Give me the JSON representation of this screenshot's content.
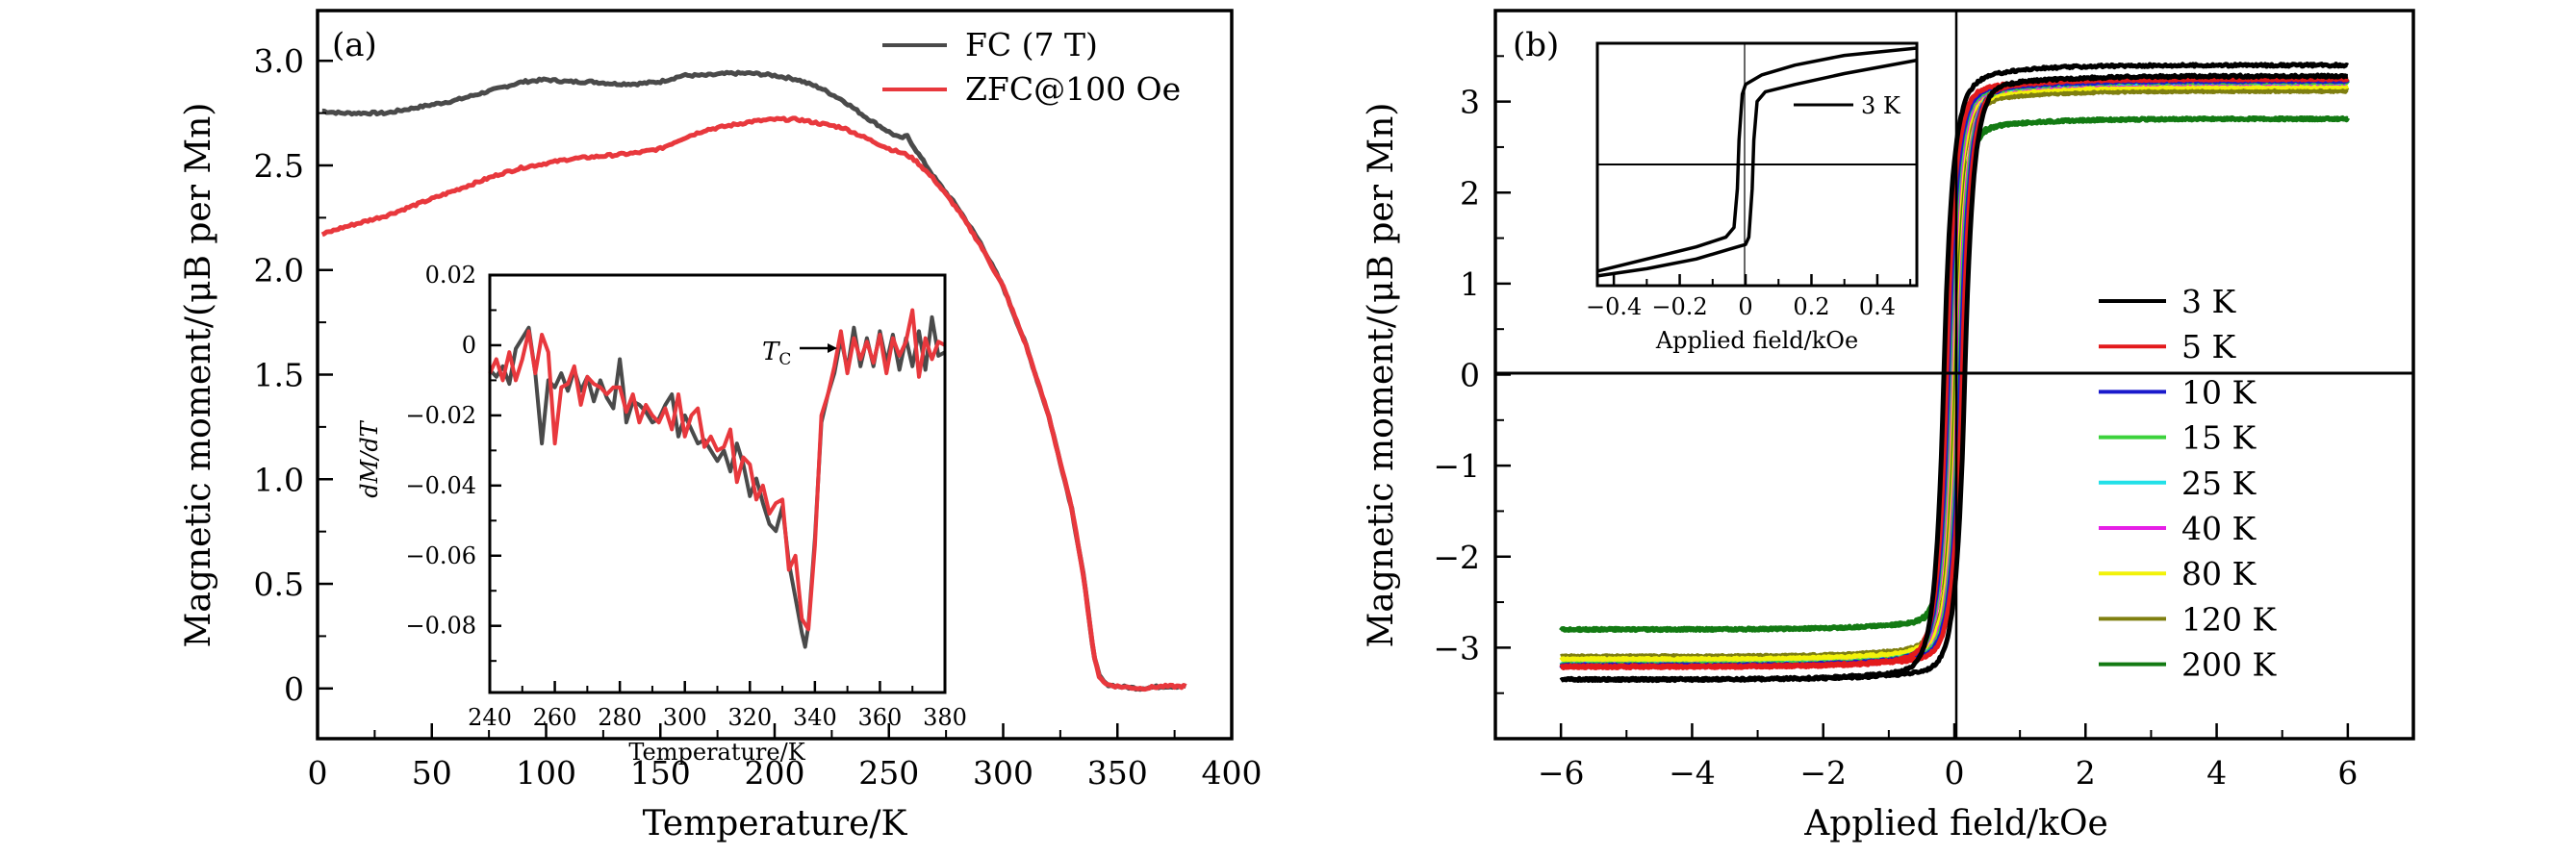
{
  "chart_data": [
    {
      "id": "a",
      "type": "line",
      "panel_label": "(a)",
      "title": "",
      "xlabel": "Temperature/K",
      "ylabel": "Magnetic moment/(μB per Mn)",
      "xlim": [
        0,
        400
      ],
      "ylim": [
        -0.24,
        3.24
      ],
      "xticks": [
        0,
        50,
        100,
        150,
        200,
        250,
        300,
        350,
        400
      ],
      "xtick_labels": [
        "0",
        "50",
        "100",
        "150",
        "200",
        "250",
        "300",
        "350",
        "400"
      ],
      "yticks": [
        0,
        0.5,
        1.0,
        1.5,
        2.0,
        2.5,
        3.0
      ],
      "ytick_labels": [
        "0",
        "0.5",
        "1.0",
        "1.5",
        "2.0",
        "2.5",
        "3.0"
      ],
      "grid": false,
      "legend_position": "top-right",
      "series": [
        {
          "name": "FC (7 T)",
          "color": "#4a4a4a",
          "x": [
            2,
            10,
            20,
            30,
            40,
            50,
            60,
            70,
            80,
            90,
            100,
            110,
            120,
            130,
            140,
            150,
            160,
            170,
            180,
            190,
            200,
            210,
            220,
            230,
            240,
            250,
            255,
            258,
            262,
            270,
            280,
            290,
            300,
            310,
            320,
            330,
            335,
            338,
            340,
            342,
            345,
            350,
            360,
            370,
            380
          ],
          "y": [
            2.76,
            2.75,
            2.75,
            2.75,
            2.77,
            2.79,
            2.81,
            2.84,
            2.87,
            2.9,
            2.91,
            2.9,
            2.9,
            2.89,
            2.89,
            2.9,
            2.93,
            2.93,
            2.94,
            2.94,
            2.93,
            2.91,
            2.87,
            2.81,
            2.73,
            2.66,
            2.63,
            2.64,
            2.57,
            2.44,
            2.3,
            2.13,
            1.92,
            1.64,
            1.3,
            0.86,
            0.55,
            0.3,
            0.14,
            0.06,
            0.02,
            0.01,
            0.0,
            0.01,
            0.01
          ]
        },
        {
          "name": "ZFC@100 Oe",
          "color": "#e8383d",
          "x": [
            2,
            10,
            20,
            30,
            40,
            50,
            60,
            70,
            80,
            90,
            100,
            110,
            120,
            130,
            140,
            150,
            160,
            170,
            180,
            190,
            200,
            210,
            220,
            230,
            240,
            250,
            258,
            262,
            270,
            280,
            290,
            300,
            310,
            320,
            330,
            335,
            338,
            340,
            342,
            345,
            350,
            360,
            370,
            380
          ],
          "y": [
            2.17,
            2.2,
            2.23,
            2.26,
            2.3,
            2.34,
            2.38,
            2.42,
            2.46,
            2.49,
            2.51,
            2.53,
            2.54,
            2.55,
            2.56,
            2.58,
            2.63,
            2.67,
            2.69,
            2.71,
            2.72,
            2.72,
            2.7,
            2.68,
            2.63,
            2.58,
            2.55,
            2.52,
            2.43,
            2.29,
            2.12,
            1.92,
            1.64,
            1.3,
            0.86,
            0.55,
            0.3,
            0.14,
            0.06,
            0.02,
            0.01,
            0.0,
            0.01,
            0.01
          ]
        }
      ],
      "inset": {
        "type": "line",
        "xlabel": "Temperature/K",
        "ylabel": "dM/dT",
        "xlim": [
          240,
          380
        ],
        "ylim": [
          -0.099,
          0.02
        ],
        "xticks": [
          240,
          260,
          280,
          300,
          320,
          340,
          360,
          380
        ],
        "xtick_labels": [
          "240",
          "260",
          "280",
          "300",
          "320",
          "340",
          "360",
          "380"
        ],
        "yticks": [
          0.02,
          0,
          -0.02,
          -0.04,
          -0.06,
          -0.08
        ],
        "ytick_labels": [
          "0.02",
          "0",
          "−0.02",
          "−0.04",
          "−0.06",
          "−0.08"
        ],
        "annotation": {
          "text": "T",
          "subscript": "C",
          "arrow_to": [
            347,
            -0.002
          ]
        },
        "series": [
          {
            "name": "FC (7 T)",
            "color": "#4a4a4a",
            "x": [
              240,
              242,
              244,
              246,
              248,
              250,
              252,
              254,
              256,
              258,
              260,
              262,
              264,
              266,
              268,
              270,
              272,
              274,
              276,
              278,
              280,
              281,
              282,
              284,
              286,
              288,
              290,
              292,
              294,
              296,
              298,
              300,
              302,
              304,
              306,
              308,
              310,
              312,
              314,
              316,
              318,
              320,
              322,
              324,
              326,
              328,
              330,
              332,
              334,
              336,
              337,
              338,
              340,
              342,
              344,
              346,
              348,
              350,
              352,
              354,
              356,
              358,
              360,
              362,
              364,
              366,
              368,
              370,
              372,
              374,
              376,
              378,
              380
            ],
            "y": [
              -0.007,
              -0.009,
              -0.006,
              -0.011,
              -0.001,
              0.002,
              0.005,
              -0.008,
              -0.028,
              -0.01,
              -0.012,
              -0.008,
              -0.013,
              -0.007,
              -0.013,
              -0.009,
              -0.016,
              -0.01,
              -0.015,
              -0.018,
              -0.004,
              -0.012,
              -0.022,
              -0.016,
              -0.017,
              -0.019,
              -0.022,
              -0.021,
              -0.017,
              -0.014,
              -0.026,
              -0.02,
              -0.024,
              -0.028,
              -0.027,
              -0.03,
              -0.033,
              -0.03,
              -0.036,
              -0.028,
              -0.034,
              -0.043,
              -0.038,
              -0.045,
              -0.051,
              -0.053,
              -0.046,
              -0.062,
              -0.072,
              -0.082,
              -0.086,
              -0.08,
              -0.055,
              -0.022,
              -0.014,
              -0.008,
              0.002,
              -0.007,
              0.005,
              -0.006,
              0.002,
              -0.006,
              0.004,
              -0.005,
              0.003,
              -0.007,
              0.002,
              -0.006,
              0.004,
              -0.007,
              0.008,
              -0.003,
              -0.002
            ]
          },
          {
            "name": "ZFC@100 Oe",
            "color": "#e8383d",
            "x": [
              240,
              242,
              244,
              246,
              248,
              250,
              252,
              254,
              256,
              258,
              260,
              262,
              264,
              266,
              268,
              270,
              272,
              274,
              276,
              278,
              280,
              282,
              284,
              286,
              288,
              290,
              292,
              294,
              296,
              298,
              300,
              302,
              304,
              306,
              308,
              310,
              312,
              314,
              316,
              318,
              320,
              322,
              324,
              326,
              328,
              330,
              332,
              334,
              336,
              338,
              340,
              342,
              344,
              346,
              348,
              350,
              352,
              354,
              356,
              358,
              360,
              362,
              364,
              366,
              368,
              370,
              372,
              374,
              376,
              378,
              380
            ],
            "y": [
              -0.008,
              -0.004,
              -0.01,
              -0.002,
              -0.01,
              -0.004,
              0.004,
              -0.008,
              0.003,
              -0.002,
              -0.028,
              -0.012,
              -0.011,
              -0.006,
              -0.017,
              -0.009,
              -0.011,
              -0.012,
              -0.014,
              -0.012,
              -0.012,
              -0.019,
              -0.014,
              -0.022,
              -0.017,
              -0.02,
              -0.022,
              -0.018,
              -0.024,
              -0.014,
              -0.026,
              -0.02,
              -0.018,
              -0.029,
              -0.026,
              -0.03,
              -0.029,
              -0.024,
              -0.039,
              -0.032,
              -0.034,
              -0.044,
              -0.04,
              -0.048,
              -0.045,
              -0.044,
              -0.064,
              -0.06,
              -0.078,
              -0.081,
              -0.057,
              -0.02,
              -0.014,
              -0.006,
              0.004,
              -0.008,
              0.002,
              -0.004,
              0.001,
              -0.005,
              0.003,
              -0.008,
              0.002,
              -0.003,
              0.001,
              0.01,
              -0.009,
              0.002,
              -0.004,
              0.001,
              0.0
            ]
          }
        ]
      }
    },
    {
      "id": "b",
      "type": "line",
      "panel_label": "(b)",
      "title": "",
      "xlabel": "Applied field/kOe",
      "ylabel": "Magnetic moment/(μB per Mn)",
      "xlim": [
        -7,
        7
      ],
      "ylim": [
        -4,
        4
      ],
      "xticks": [
        -6,
        -4,
        -2,
        0,
        2,
        4,
        6
      ],
      "xtick_labels": [
        "−6",
        "−4",
        "−2",
        "0",
        "2",
        "4",
        "6"
      ],
      "yticks": [
        -3,
        -2,
        -1,
        0,
        1,
        2,
        3
      ],
      "ytick_labels": [
        "−3",
        "−2",
        "−1",
        "0",
        "1",
        "2",
        "3"
      ],
      "grid": false,
      "zero_lines": true,
      "legend_position": "center-right",
      "series": [
        {
          "name": "3 K",
          "color": "#000000",
          "Ms_pos": 3.4,
          "Ms_pos_lower": 3.28,
          "Ms_neg": -3.35,
          "Hc": 0.02
        },
        {
          "name": "5 K",
          "color": "#e31a1c",
          "Ms_pos": 3.25,
          "Ms_neg": -3.21,
          "Hc": 0.015
        },
        {
          "name": "10 K",
          "color": "#1a1acc",
          "Ms_pos": 3.23,
          "Ms_neg": -3.2,
          "Hc": 0.012
        },
        {
          "name": "15 K",
          "color": "#3cd23c",
          "Ms_pos": 3.22,
          "Ms_neg": -3.19,
          "Hc": 0.01
        },
        {
          "name": "25 K",
          "color": "#22e0e8",
          "Ms_pos": 3.22,
          "Ms_neg": -3.19,
          "Hc": 0.01
        },
        {
          "name": "40 K",
          "color": "#e61ee6",
          "Ms_pos": 3.21,
          "Ms_neg": -3.19,
          "Hc": 0.008
        },
        {
          "name": "80 K",
          "color": "#f2f20a",
          "Ms_pos": 3.17,
          "Ms_neg": -3.13,
          "Hc": 0.006
        },
        {
          "name": "120 K",
          "color": "#7f7f10",
          "Ms_pos": 3.12,
          "Ms_neg": -3.1,
          "Hc": 0.005
        },
        {
          "name": "200 K",
          "color": "#137a13",
          "Ms_pos": 2.81,
          "Ms_neg": -2.8,
          "Hc": 0.003
        }
      ],
      "x_range_measured": [
        -6,
        6
      ],
      "inset": {
        "type": "line",
        "xlabel": "Applied field/kOe",
        "xlim": [
          -0.45,
          0.52
        ],
        "ylim": [
          -1,
          1
        ],
        "xticks": [
          -0.4,
          -0.2,
          0,
          0.2,
          0.4
        ],
        "xtick_labels": [
          "−0.4",
          "−0.2",
          "0",
          "0.2",
          "0.4"
        ],
        "legend": "3 K",
        "series": [
          {
            "name": "3 K (ascending branch)",
            "color": "#000000",
            "x": [
              -0.45,
              -0.3,
              -0.15,
              -0.05,
              0.0,
              0.01,
              0.02,
              0.025,
              0.035,
              0.06,
              0.15,
              0.3,
              0.52
            ],
            "y": [
              -0.92,
              -0.86,
              -0.78,
              -0.7,
              -0.66,
              -0.6,
              -0.2,
              0.2,
              0.52,
              0.6,
              0.66,
              0.75,
              0.86
            ]
          },
          {
            "name": "3 K (descending branch)",
            "color": "#000000",
            "x": [
              0.52,
              0.3,
              0.15,
              0.05,
              0.0,
              -0.01,
              -0.02,
              -0.025,
              -0.035,
              -0.06,
              -0.15,
              -0.3,
              -0.45
            ],
            "y": [
              0.96,
              0.9,
              0.82,
              0.74,
              0.66,
              0.58,
              0.2,
              -0.2,
              -0.52,
              -0.6,
              -0.68,
              -0.78,
              -0.88
            ]
          }
        ]
      }
    }
  ]
}
